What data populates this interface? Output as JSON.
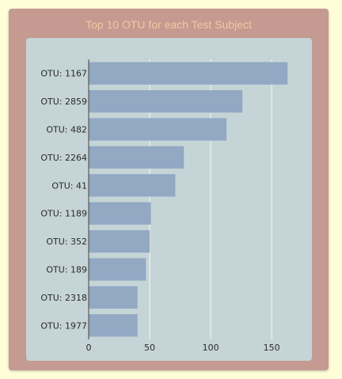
{
  "panel": {
    "title": "Top 10 OTU for each Test Subject"
  },
  "colors": {
    "page_background": "#fffed8",
    "panel_background": "#c49a91",
    "title_color": "#f2c9a0",
    "plot_background": "#c5d4d6",
    "bar_color": "#92a8c3",
    "gridline_color": "#f4f6f7"
  },
  "chart_data": {
    "type": "bar",
    "orientation": "horizontal",
    "title": "",
    "xlabel": "",
    "ylabel": "",
    "categories": [
      "OTU: 1167",
      "OTU: 2859",
      "OTU: 482",
      "OTU: 2264",
      "OTU: 41",
      "OTU: 1189",
      "OTU: 352",
      "OTU: 189",
      "OTU: 2318",
      "OTU: 1977"
    ],
    "values": [
      163,
      126,
      113,
      78,
      71,
      51,
      50,
      47,
      40,
      40
    ],
    "xlim": [
      0,
      170
    ],
    "xticks": [
      0,
      50,
      100,
      150
    ],
    "grid": true,
    "legend": "none"
  }
}
